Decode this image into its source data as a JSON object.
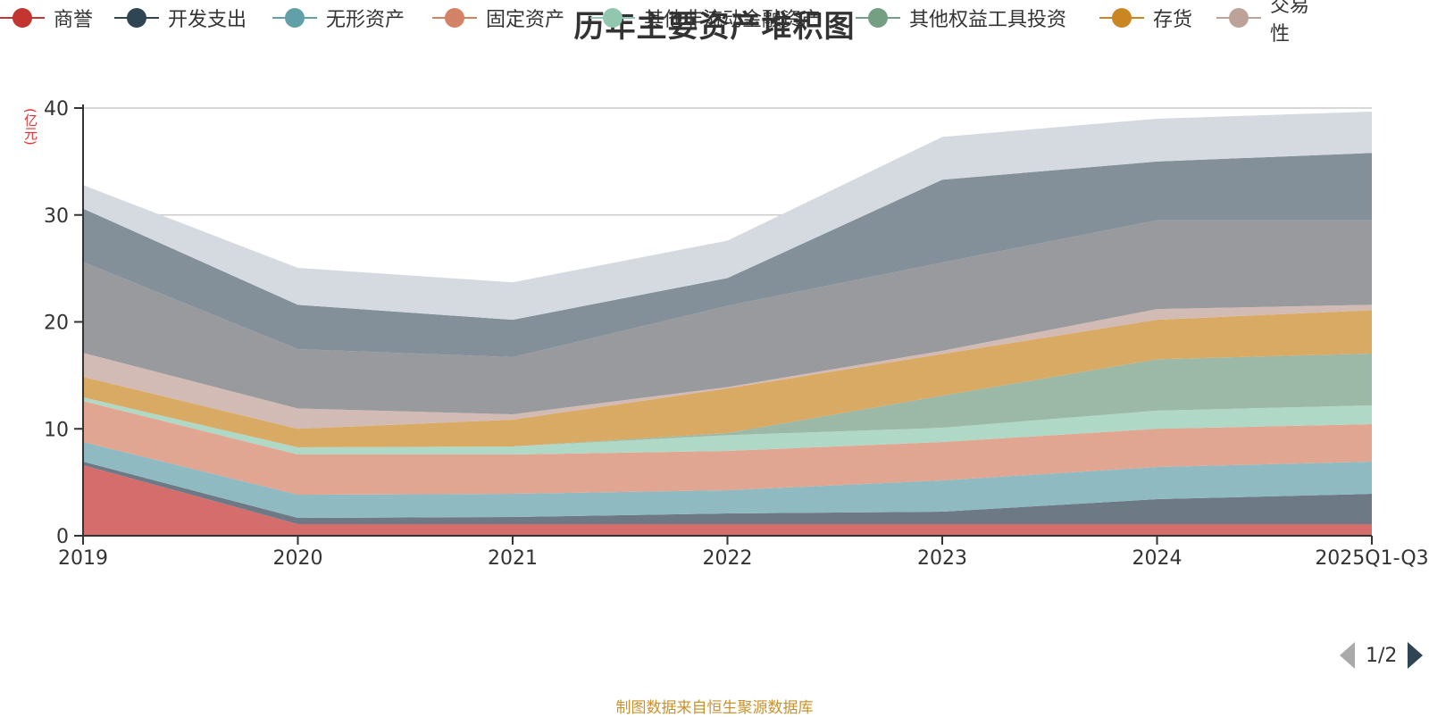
{
  "chart_data": {
    "type": "area",
    "stacked": true,
    "title": "历年主要资产堆积图",
    "ylabel": "(亿元)",
    "xlabel": "",
    "categories": [
      "2019",
      "2020",
      "2021",
      "2022",
      "2023",
      "2024",
      "2025Q1-Q3"
    ],
    "ylim": [
      0,
      40
    ],
    "yticks": [
      0,
      10,
      20,
      30,
      40
    ],
    "grid": true,
    "legend_position": "bottom",
    "series": [
      {
        "name": "商誉",
        "color": "#c23531",
        "values": [
          6.6,
          1.09,
          1.09,
          1.09,
          1.09,
          1.09,
          1.09
        ]
      },
      {
        "name": "开发支出",
        "color": "#2f4554",
        "values": [
          0.33,
          0.58,
          0.66,
          1.0,
          1.16,
          2.33,
          2.83
        ]
      },
      {
        "name": "无形资产",
        "color": "#61a0a8",
        "values": [
          1.84,
          2.17,
          2.17,
          2.17,
          2.93,
          3.01,
          3.01
        ]
      },
      {
        "name": "固定资产",
        "color": "#d48265",
        "values": [
          3.83,
          3.76,
          3.68,
          3.67,
          3.59,
          3.57,
          3.51
        ]
      },
      {
        "name": "其他非流动金融资产",
        "color": "#91c7ae",
        "values": [
          0.34,
          0.67,
          0.75,
          1.47,
          1.33,
          1.7,
          1.75
        ]
      },
      {
        "name": "其他权益工具投资",
        "color": "#749f83",
        "values": [
          0.0,
          0.0,
          0.0,
          0.2,
          3.0,
          4.8,
          4.85
        ]
      },
      {
        "name": "存货",
        "color": "#ca8622",
        "values": [
          1.92,
          1.73,
          2.51,
          4.18,
          3.9,
          3.7,
          4.06
        ]
      },
      {
        "name": "交易性",
        "color": "#bda29a",
        "values": [
          2.24,
          1.9,
          0.5,
          0.12,
          0.3,
          1.0,
          0.5
        ]
      },
      {
        "name": "",
        "color": "#6e7074",
        "values": [
          8.5,
          5.55,
          5.34,
          7.6,
          8.25,
          8.3,
          7.9
        ]
      },
      {
        "name": "",
        "color": "#2f4554",
        "values": [
          5.0,
          4.15,
          3.5,
          2.6,
          7.75,
          5.5,
          6.3
        ]
      },
      {
        "name": "",
        "color": "#c4ccd3",
        "values": [
          2.2,
          3.45,
          3.5,
          3.5,
          4.0,
          4.0,
          3.87
        ]
      }
    ]
  },
  "legend": {
    "items": [
      {
        "label": "商誉",
        "color": "#c23531"
      },
      {
        "label": "开发支出",
        "color": "#2f4554"
      },
      {
        "label": "无形资产",
        "color": "#61a0a8"
      },
      {
        "label": "固定资产",
        "color": "#d48265"
      },
      {
        "label": "其他非流动金融资产",
        "color": "#91c7ae"
      },
      {
        "label": "其他权益工具投资",
        "color": "#749f83"
      },
      {
        "label": "存货",
        "color": "#ca8622"
      },
      {
        "label": "交易性",
        "color": "#bda29a"
      }
    ],
    "page_indicator": "1/2"
  },
  "footer": {
    "source": "制图数据来自恒生聚源数据库"
  }
}
